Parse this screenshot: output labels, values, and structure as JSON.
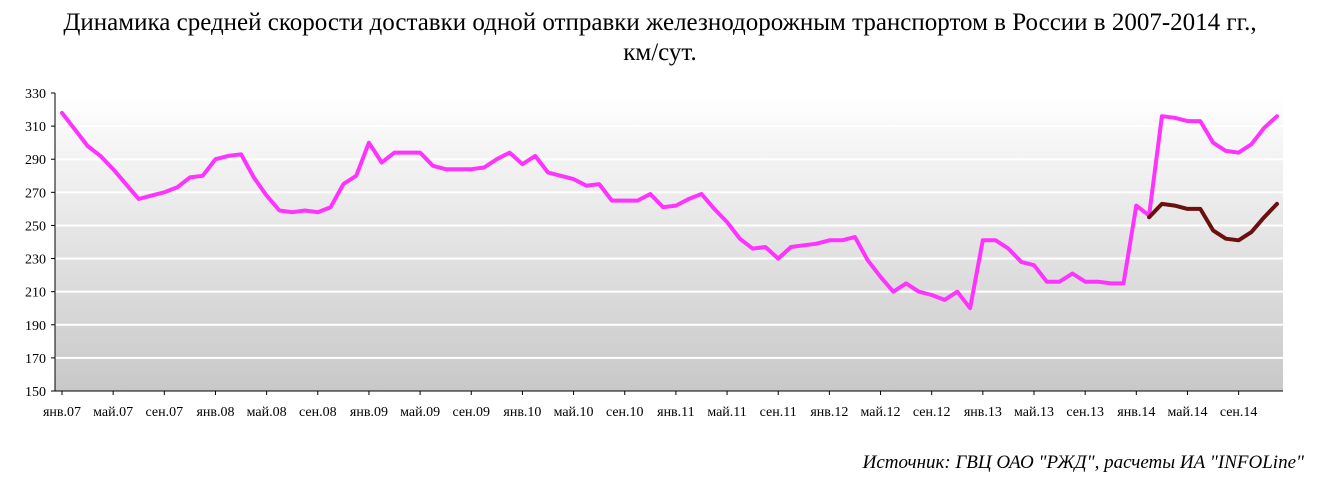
{
  "title_line1": "Динамика средней скорости доставки одной отправки железнодорожным транспортом в России в 2007-2014 гг.,",
  "title_line2": "км/сут.",
  "source": "Источник: ГВЦ ОАО \"РЖД\", расчеты ИА \"INFOLine\"",
  "chart_data": {
    "type": "line",
    "title": "Динамика средней скорости доставки одной отправки железнодорожным транспортом в России в 2007-2014 гг., км/сут.",
    "ylim": [
      150,
      330
    ],
    "y_ticks": [
      150,
      170,
      190,
      210,
      230,
      250,
      270,
      290,
      310,
      330
    ],
    "x_tick_labels": [
      "янв.07",
      "май.07",
      "сен.07",
      "янв.08",
      "май.08",
      "сен.08",
      "янв.09",
      "май.09",
      "сен.09",
      "янв.10",
      "май.10",
      "сен.10",
      "янв.11",
      "май.11",
      "сен.11",
      "янв.12",
      "май.12",
      "сен.12",
      "янв.13",
      "май.13",
      "сен.13",
      "янв.14",
      "май.14",
      "сен.14"
    ],
    "grid": true,
    "legend": "none",
    "series": [
      {
        "color": "#ff33ff",
        "values": [
          318,
          308,
          298,
          292,
          284,
          275,
          266,
          268,
          270,
          273,
          279,
          280,
          290,
          292,
          293,
          279,
          268,
          259,
          258,
          259,
          258,
          261,
          275,
          280,
          300,
          288,
          294,
          294,
          294,
          286,
          284,
          284,
          284,
          285,
          290,
          294,
          287,
          292,
          282,
          280,
          278,
          274,
          275,
          265,
          265,
          265,
          269,
          261,
          262,
          266,
          269,
          260,
          252,
          242,
          236,
          237,
          230,
          237,
          238,
          239,
          241,
          241,
          243,
          229,
          219,
          210,
          215,
          210,
          208,
          205,
          210,
          200,
          241,
          241,
          236,
          228,
          226,
          216,
          216,
          221,
          216,
          216,
          215,
          215,
          262,
          256,
          316,
          315,
          313,
          313,
          300,
          295,
          294,
          299,
          309,
          316
        ]
      },
      {
        "color": "#6b0f0f",
        "start_index": 85,
        "values": [
          255,
          263,
          262,
          260,
          260,
          247,
          242,
          241,
          246,
          255,
          263
        ]
      }
    ]
  }
}
